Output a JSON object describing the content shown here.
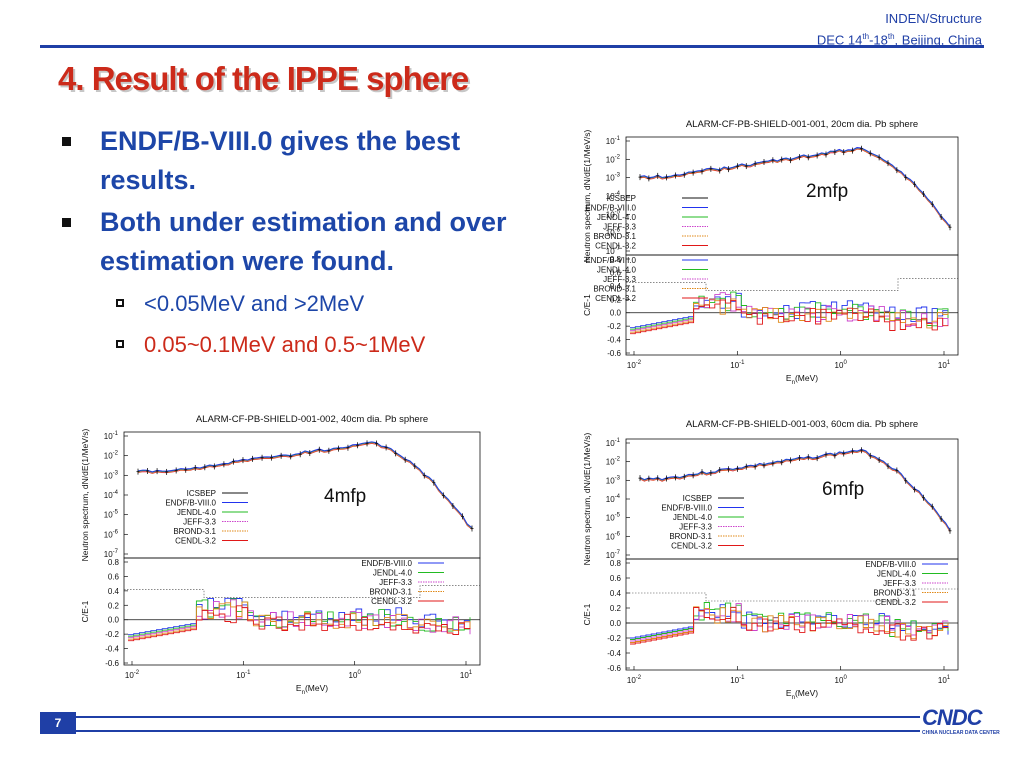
{
  "header": {
    "org": "INDEN/Structure",
    "date_prefix": "DEC 14",
    "date_sup1": "th",
    "date_mid": "-18",
    "date_sup2": "th",
    "date_suffix": ",  Beijing, China"
  },
  "title": "4. Result of the IPPE sphere",
  "bullets": [
    {
      "text": "ENDF/B-VIII.0 gives the best results."
    },
    {
      "text": "Both under estimation and over estimation were found."
    }
  ],
  "sub_bullets": [
    {
      "text": "<0.05MeV and >2MeV"
    },
    {
      "text": "0.05~0.1MeV and 0.5~1MeV"
    }
  ],
  "colors": {
    "title": "#cc2a1a",
    "bullet": "#1d46a8",
    "sub_bullet_1": "#1d46a8",
    "sub_bullet_2": "#cc2a1a",
    "accent": "#1f3fa6"
  },
  "charts": [
    {
      "title": "ALARM-CF-PB-SHIELD-001-001, 20cm dia. Pb sphere",
      "annotation": "2mfp"
    },
    {
      "title": "ALARM-CF-PB-SHIELD-001-002, 40cm dia. Pb sphere",
      "annotation": "4mfp"
    },
    {
      "title": "ALARM-CF-PB-SHIELD-001-003, 60cm dia. Pb sphere",
      "annotation": "6mfp"
    }
  ],
  "chart_common": {
    "ylabel_top": "Neutron spectrum, dN/dE(1/MeV/s)",
    "ylabel_bottom": "C/E-1",
    "xlabel_main": "E",
    "xlabel_sub": "n",
    "xlabel_unit": "(MeV)",
    "top_ticks": [
      {
        "b": "10",
        "e": "-1"
      },
      {
        "b": "10",
        "e": "-2"
      },
      {
        "b": "10",
        "e": "-3"
      },
      {
        "b": "10",
        "e": "-4"
      },
      {
        "b": "10",
        "e": "-5"
      },
      {
        "b": "10",
        "e": "-6"
      },
      {
        "b": "10",
        "e": "-7"
      }
    ],
    "bottom_ticks": [
      "0.8",
      "0.6",
      "0.4",
      "0.2",
      "0.0",
      "-0.2",
      "-0.4",
      "-0.6"
    ],
    "x_ticks": [
      {
        "b": "10",
        "e": "-2"
      },
      {
        "b": "10",
        "e": "-1"
      },
      {
        "b": "10",
        "e": "0"
      },
      {
        "b": "10",
        "e": "1"
      }
    ],
    "legend_top": [
      "ICSBEP",
      "ENDF/B-VIII.0",
      "JENDL-4.0",
      "JEFF-3.3",
      "BROND-3.1",
      "CENDL-3.2"
    ],
    "legend_bottom": [
      "ENDF/B-VIII.0",
      "JENDL-4.0",
      "JEFF-3.3",
      "BROND-3.1",
      "CENDL-3.2"
    ],
    "series_colors": [
      "#111111",
      "#2233ee",
      "#22bb22",
      "#cc44cc",
      "#e08a1a",
      "#e01818"
    ]
  },
  "page_number": "7",
  "logo": {
    "name": "CNDC",
    "subtitle": "CHINA NUCLEAR DATA CENTER"
  }
}
